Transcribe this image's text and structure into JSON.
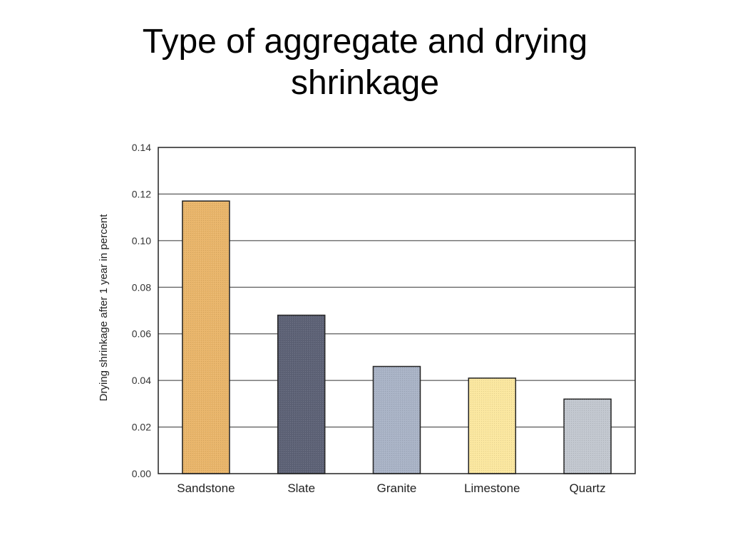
{
  "slide": {
    "title_line1": "Type of aggregate and drying",
    "title_line2": "shrinkage"
  },
  "chart_data": {
    "type": "bar",
    "title": "",
    "xlabel": "",
    "ylabel": "Drying shrinkage after 1 year in percent",
    "categories": [
      "Sandstone",
      "Slate",
      "Granite",
      "Limestone",
      "Quartz"
    ],
    "values": [
      0.117,
      0.068,
      0.046,
      0.041,
      0.032
    ],
    "ylim": [
      0,
      0.14
    ],
    "yticks": [
      "0.00",
      "0.02",
      "0.04",
      "0.06",
      "0.08",
      "0.10",
      "0.12",
      "0.14"
    ],
    "grid": true,
    "colors": [
      "#e9b56a",
      "#5d6276",
      "#a9b3c6",
      "#fbe79f",
      "#c2c7cf"
    ]
  }
}
